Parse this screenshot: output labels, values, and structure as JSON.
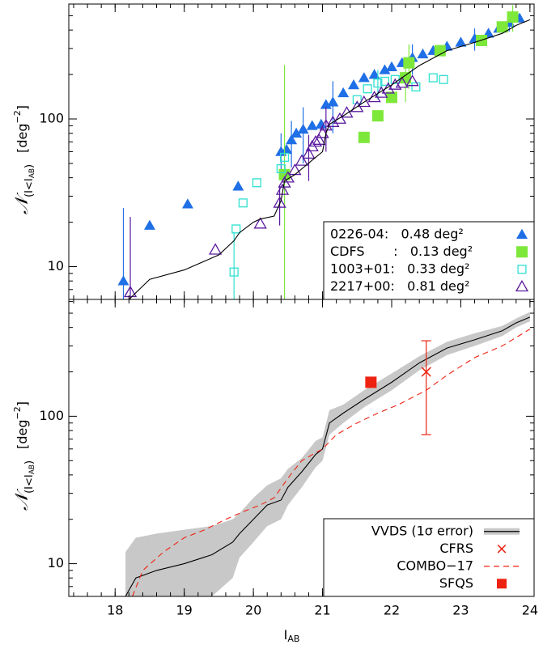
{
  "chart_data": [
    {
      "type": "line",
      "log_y": true,
      "xlim": [
        17.33,
        24.06
      ],
      "ylim": [
        6,
        600
      ],
      "xticks": [
        18,
        19,
        20,
        21,
        22,
        23,
        24
      ],
      "xtick_labels": false,
      "yticks": [
        10,
        100
      ],
      "y_label": {
        "symbol": "𝒩",
        "sub": "(I<I",
        "sub_sub": "AB",
        "sub_end": ")",
        "unit": "[deg",
        "unit_sup": "−2",
        "unit_end": "]"
      },
      "legend": "lower right",
      "legend_text_align": "left",
      "series": [
        {
          "name": "0226-04:   0.48 deg²",
          "color": "#1f6fe6",
          "marker": "triangle",
          "x": [
            18.12,
            18.5,
            19.05,
            19.78,
            20.4,
            20.48,
            20.55,
            20.62,
            20.72,
            20.85,
            20.98,
            21.05,
            21.15,
            21.3,
            21.45,
            21.6,
            21.75,
            21.9,
            22.0,
            22.15,
            22.3,
            22.45,
            22.6,
            22.8,
            23.0,
            23.2,
            23.4,
            23.55,
            23.7,
            23.85
          ],
          "values": [
            8,
            19,
            26.5,
            35,
            60,
            62,
            72,
            80,
            85,
            90,
            92,
            125,
            130,
            150,
            170,
            190,
            200,
            215,
            225,
            240,
            260,
            275,
            290,
            310,
            330,
            350,
            380,
            410,
            450,
            480
          ],
          "yerr": [
            17,
            null,
            null,
            null,
            20,
            null,
            25,
            null,
            35,
            null,
            null,
            null,
            50,
            null,
            null,
            null,
            null,
            null,
            null,
            null,
            60,
            null,
            null,
            null,
            null,
            60,
            null,
            null,
            60,
            null
          ]
        },
        {
          "name": "CDFS       :   0.13 deg²",
          "color": "#7de83a",
          "marker": "square",
          "x": [
            20.45,
            21.6,
            21.8,
            22.0,
            22.2,
            22.25,
            22.7,
            23.3,
            23.6,
            23.75
          ],
          "values": [
            42,
            75,
            105,
            140,
            190,
            240,
            290,
            340,
            420,
            490
          ],
          "yerr": [
            190,
            null,
            null,
            null,
            60,
            80,
            null,
            null,
            null,
            100
          ]
        },
        {
          "name": "1003+01:   0.33 deg²",
          "color": "#2ee0d0",
          "marker": "open-square",
          "x": [
            19.72,
            19.75,
            19.85,
            20.05,
            20.4,
            20.45,
            21.5,
            21.65,
            21.8,
            21.9,
            22.05,
            22.35,
            22.6,
            22.75
          ],
          "values": [
            9.2,
            18,
            27,
            37,
            46,
            55,
            135,
            160,
            175,
            180,
            185,
            165,
            190,
            185
          ],
          "yerr": [
            8,
            null,
            null,
            null,
            null,
            null,
            null,
            null,
            40,
            null,
            null,
            null,
            null,
            null
          ]
        },
        {
          "name": "2217+00:   0.81 deg²",
          "color": "#5a1aa0",
          "marker": "open-triangle",
          "x": [
            18.22,
            19.45,
            20.1,
            20.38,
            20.42,
            20.45,
            20.5,
            20.6,
            20.7,
            20.8,
            20.85,
            20.9,
            20.95,
            21.0,
            21.05,
            21.15,
            21.25,
            21.35,
            21.5,
            21.6,
            21.75,
            21.85,
            21.95,
            22.05,
            22.15,
            22.3
          ],
          "values": [
            6.7,
            13,
            19.5,
            27,
            33,
            37,
            40,
            45,
            52,
            58,
            65,
            70,
            72,
            80,
            90,
            95,
            100,
            110,
            120,
            130,
            140,
            150,
            160,
            170,
            175,
            180
          ],
          "yerr": [
            15,
            null,
            null,
            8,
            null,
            null,
            null,
            null,
            null,
            20,
            null,
            null,
            null,
            null,
            30,
            null,
            null,
            null,
            null,
            null,
            null,
            null,
            null,
            null,
            null,
            null
          ]
        },
        {
          "color": "#000000",
          "marker": "none",
          "linestyle": "solid",
          "x": [
            18.2,
            18.5,
            19.0,
            19.5,
            19.72,
            19.8,
            20.0,
            20.1,
            20.3,
            20.4,
            20.45,
            20.6,
            20.9,
            21.0,
            21.05,
            21.1,
            21.3,
            21.6,
            22.0,
            22.4,
            22.8,
            23.2,
            23.6,
            23.8,
            24.0
          ],
          "values": [
            6,
            8.2,
            9.5,
            12,
            15,
            17,
            20,
            21,
            22,
            28,
            38,
            42,
            55,
            60,
            80,
            92,
            105,
            130,
            170,
            230,
            290,
            330,
            380,
            430,
            470
          ]
        }
      ]
    },
    {
      "type": "line",
      "log_y": true,
      "xlim": [
        17.33,
        24.06
      ],
      "ylim": [
        6,
        620
      ],
      "xticks": [
        18,
        19,
        20,
        21,
        22,
        23,
        24
      ],
      "xtick_labels": true,
      "x_label": {
        "main": "I",
        "sub": "AB"
      },
      "yticks": [
        10,
        100
      ],
      "y_label": {
        "symbol": "𝒩",
        "sub": "(I<I",
        "sub_sub": "AB",
        "sub_end": ")",
        "unit": "[deg",
        "unit_sup": "−2",
        "unit_end": "]"
      },
      "legend": "lower right",
      "legend_text_align": "right",
      "series": [
        {
          "name": "VVDS (1σ error)",
          "color": "#000000",
          "band_color": "#c8c8c8",
          "marker": "none",
          "linestyle": "solid",
          "x": [
            18.15,
            18.3,
            18.6,
            19.0,
            19.4,
            19.7,
            19.8,
            20.0,
            20.2,
            20.4,
            20.5,
            20.7,
            20.9,
            21.0,
            21.1,
            21.3,
            21.6,
            22.0,
            22.4,
            22.8,
            23.2,
            23.6,
            23.8,
            24.0
          ],
          "values": [
            6,
            8,
            9,
            10,
            11.5,
            14,
            16,
            20,
            25,
            27,
            33,
            42,
            55,
            60,
            90,
            105,
            130,
            170,
            230,
            290,
            330,
            380,
            430,
            470
          ],
          "band_low": [
            6,
            6,
            6,
            6,
            6,
            8,
            11,
            14,
            18,
            20,
            25,
            33,
            45,
            50,
            75,
            90,
            115,
            150,
            205,
            260,
            300,
            350,
            400,
            440
          ],
          "band_high": [
            12,
            15,
            16,
            17,
            18,
            20,
            22,
            28,
            34,
            38,
            44,
            52,
            68,
            72,
            110,
            120,
            150,
            195,
            255,
            320,
            365,
            410,
            460,
            510
          ]
        },
        {
          "name": "CFRS",
          "color": "#ee2211",
          "marker": "x",
          "x": [
            22.5
          ],
          "values": [
            200
          ],
          "yerr": [
            125
          ]
        },
        {
          "name": "COMBO−17",
          "color": "#ee2211",
          "marker": "none",
          "linestyle": "dashed",
          "x": [
            18.25,
            18.4,
            18.7,
            19.0,
            19.3,
            19.6,
            19.9,
            20.1,
            20.3,
            20.5,
            20.7,
            21.0,
            21.2,
            21.5,
            21.8,
            22.1,
            22.5,
            22.8,
            23.2,
            23.6,
            24.0
          ],
          "values": [
            6,
            9,
            12,
            15,
            17,
            20,
            23,
            25,
            28,
            38,
            50,
            60,
            75,
            90,
            105,
            120,
            150,
            190,
            250,
            300,
            390
          ]
        },
        {
          "name": "SFQS",
          "color": "#ee2211",
          "marker": "square",
          "x": [
            21.7
          ],
          "values": [
            170
          ]
        }
      ]
    }
  ]
}
